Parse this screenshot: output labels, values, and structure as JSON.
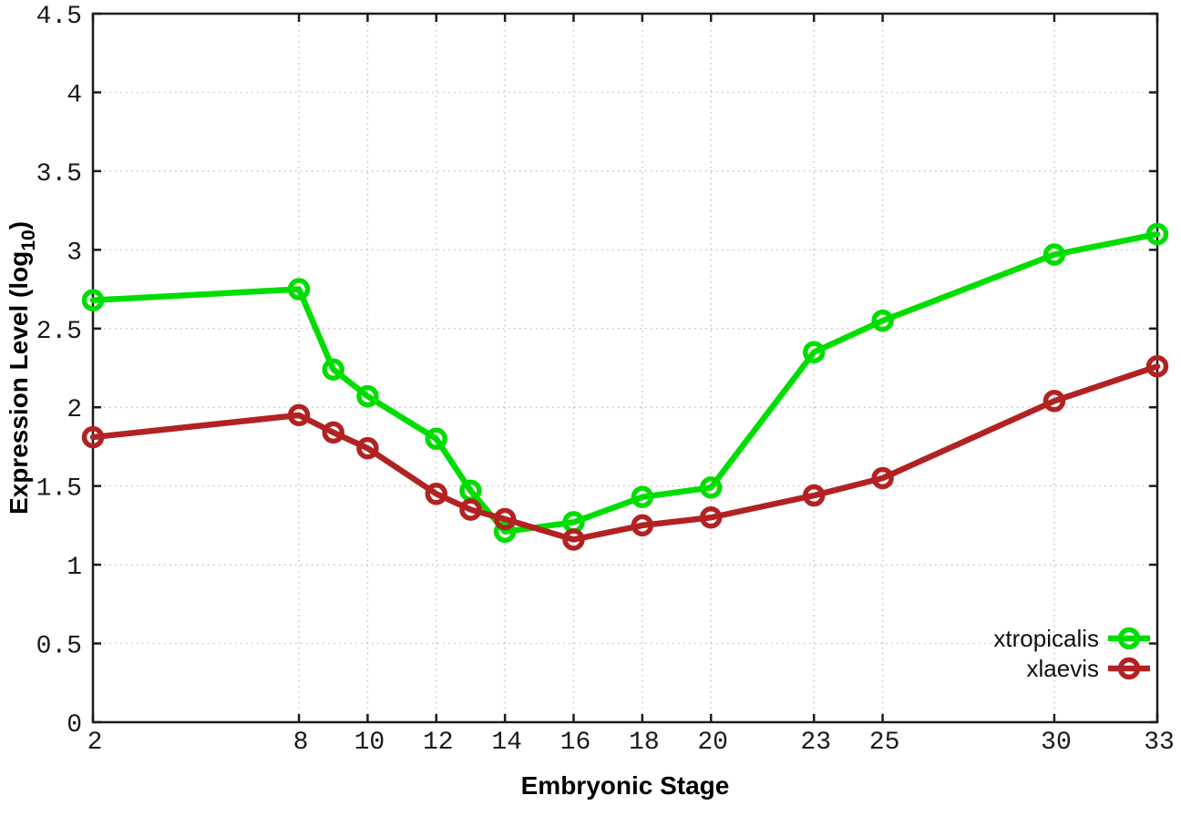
{
  "chart_data": {
    "type": "line",
    "title": "",
    "xlabel": "Embryonic Stage",
    "ylabel": "Expression Level (log10)",
    "ylabel_parts": {
      "pre": "Expression Level (log",
      "sub": "10",
      "post": ")"
    },
    "xlim": [
      2,
      33
    ],
    "ylim": [
      0,
      4.5
    ],
    "x_tick_labels": [
      "2",
      "8",
      "10",
      "12",
      "14",
      "16",
      "18",
      "20",
      "23",
      "25",
      "30",
      "33"
    ],
    "x_tick_values": [
      2,
      8,
      10,
      12,
      14,
      16,
      18,
      20,
      23,
      25,
      30,
      33
    ],
    "y_tick_labels": [
      "0",
      "0.5",
      "1",
      "1.5",
      "2",
      "2.5",
      "3",
      "3.5",
      "4",
      "4.5"
    ],
    "y_tick_values": [
      0,
      0.5,
      1,
      1.5,
      2,
      2.5,
      3,
      3.5,
      4,
      4.5
    ],
    "grid": "dotted",
    "legend_position": "inside bottom-right",
    "marker": "open-circle",
    "colors": {
      "xtropicalis": "#00dd00",
      "xlaevis": "#b22222",
      "grid": "#c4c4c4",
      "border": "#1c1c1c",
      "tick_text": "#1a1a1a"
    },
    "x": [
      2,
      8,
      9,
      10,
      12,
      13,
      14,
      16,
      18,
      20,
      23,
      25,
      30,
      33
    ],
    "series": [
      {
        "name": "xtropicalis",
        "color": "#00dd00",
        "values": [
          2.68,
          2.75,
          2.24,
          2.07,
          1.8,
          1.47,
          1.21,
          1.27,
          1.43,
          1.49,
          2.35,
          2.55,
          2.97,
          3.1
        ]
      },
      {
        "name": "xlaevis",
        "color": "#b22222",
        "values": [
          1.81,
          1.95,
          1.84,
          1.74,
          1.45,
          1.35,
          1.29,
          1.16,
          1.25,
          1.3,
          1.44,
          1.55,
          2.04,
          2.26
        ]
      }
    ]
  }
}
